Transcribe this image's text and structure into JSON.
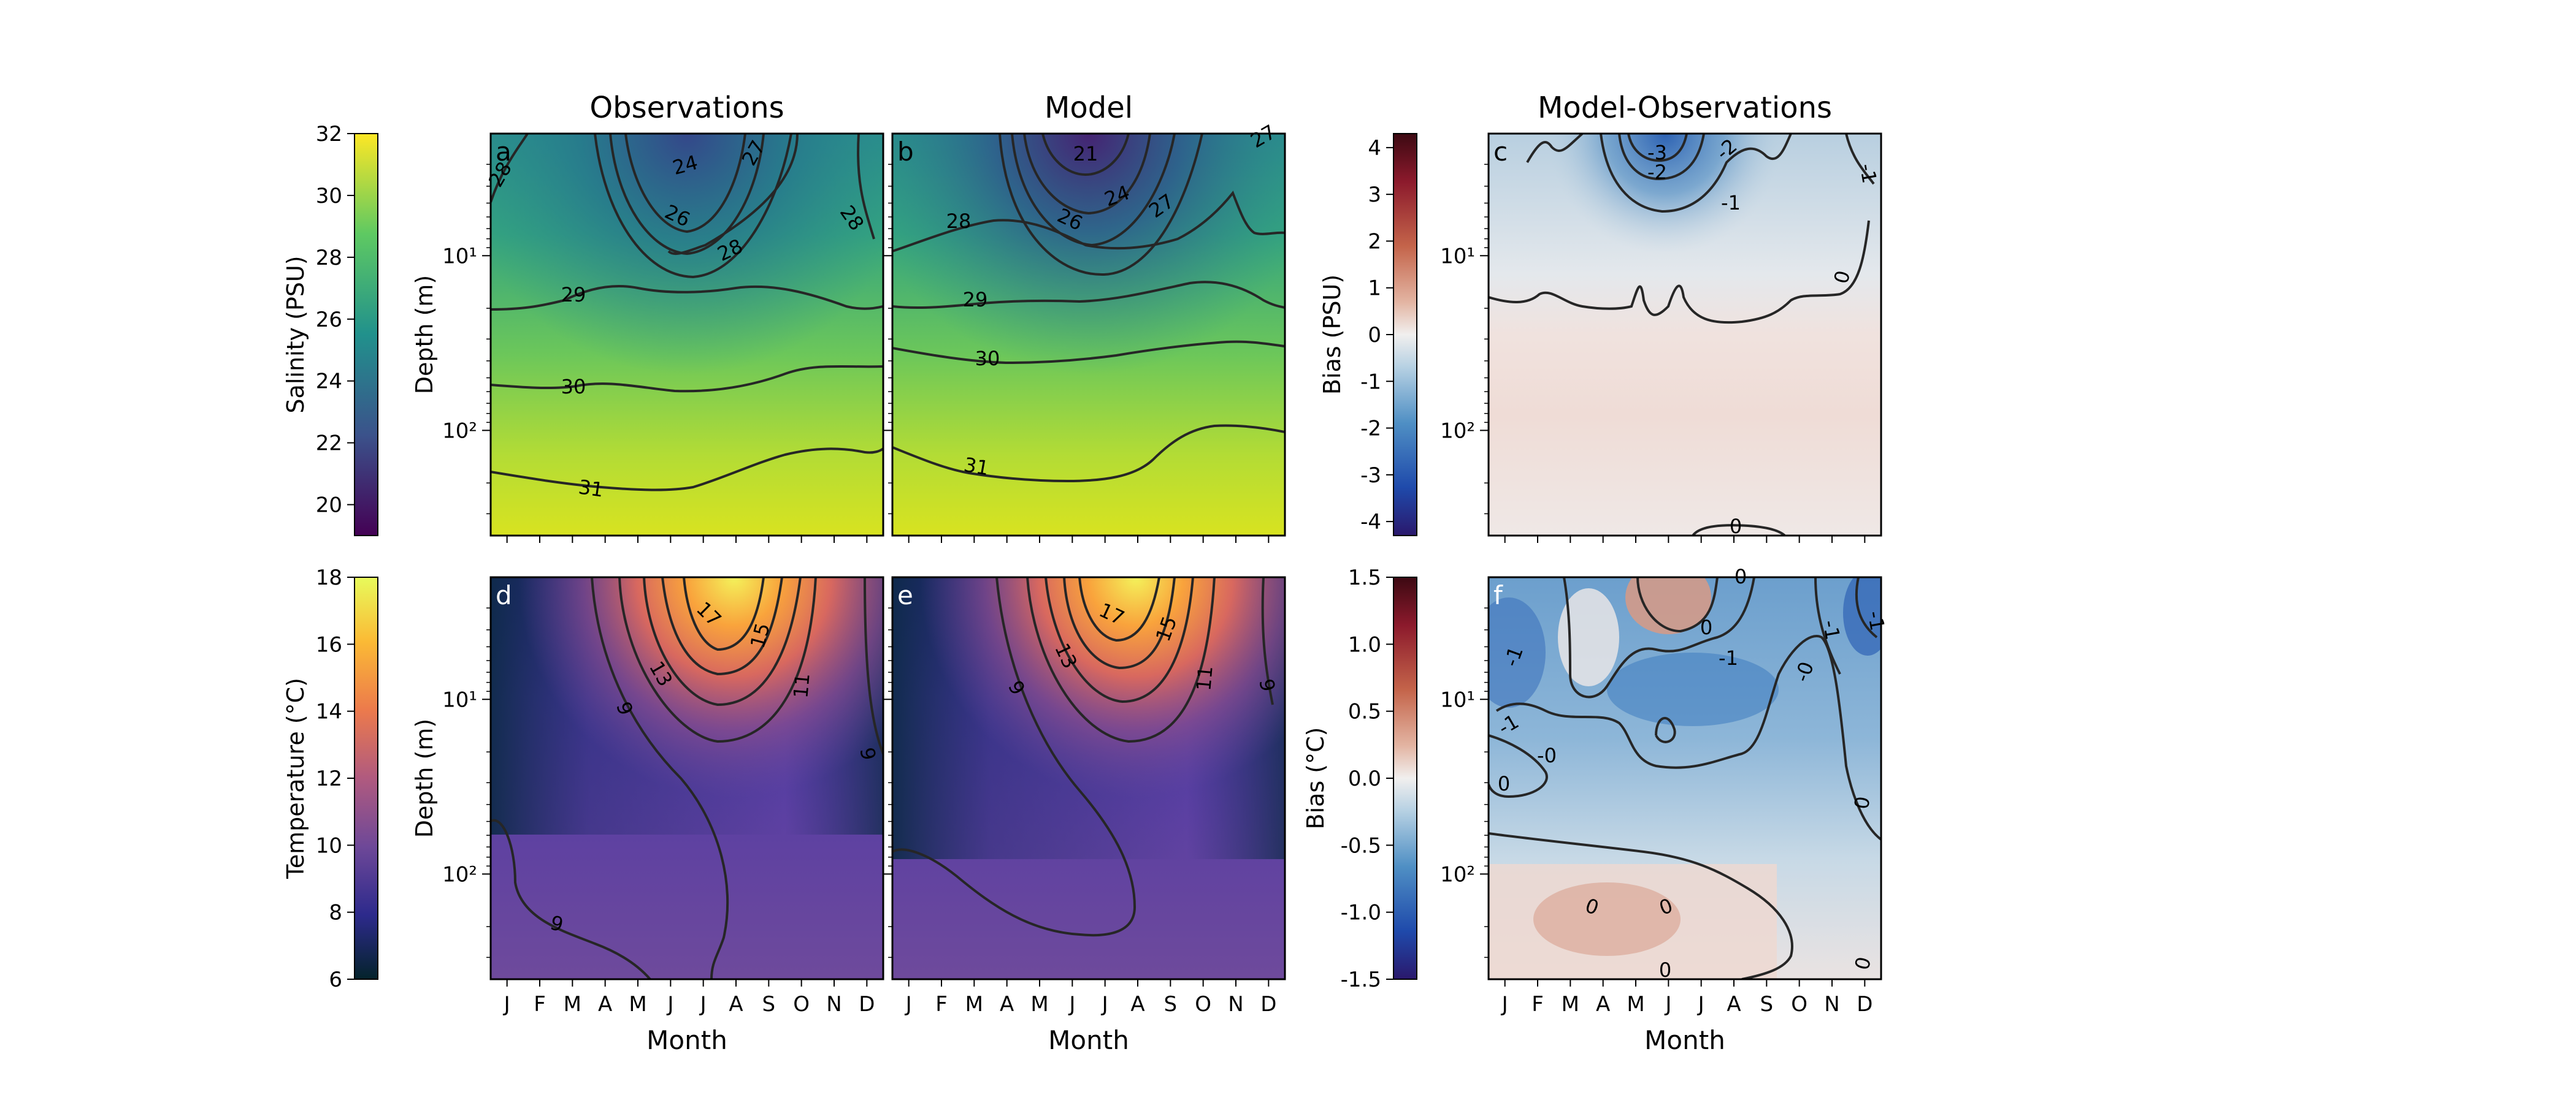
{
  "chart_data": [
    {
      "id": "a",
      "type": "heatmap",
      "panel_letter": "a",
      "title": "Observations",
      "ylabel": "Depth (m)",
      "xlabel": "",
      "x": [
        "J",
        "F",
        "M",
        "A",
        "M",
        "J",
        "J",
        "A",
        "S",
        "O",
        "N",
        "D"
      ],
      "y_scale": "log",
      "y_ticks": [
        "10¹",
        "10²"
      ],
      "variable": "salinity",
      "contours": [
        {
          "level": "24",
          "label": "24"
        },
        {
          "level": "26",
          "label": "26"
        },
        {
          "level": "27",
          "label": "27"
        },
        {
          "level": "28",
          "label": "28"
        },
        {
          "level": "29",
          "label": "29"
        },
        {
          "level": "30",
          "label": "30"
        },
        {
          "level": "31",
          "label": "31"
        }
      ]
    },
    {
      "id": "b",
      "type": "heatmap",
      "panel_letter": "b",
      "title": "Model",
      "ylabel": "",
      "xlabel": "",
      "x": [
        "J",
        "F",
        "M",
        "A",
        "M",
        "J",
        "J",
        "A",
        "S",
        "O",
        "N",
        "D"
      ],
      "y_scale": "log",
      "variable": "salinity",
      "contours": [
        {
          "level": "21",
          "label": "21"
        },
        {
          "level": "24",
          "label": "24"
        },
        {
          "level": "26",
          "label": "26"
        },
        {
          "level": "27",
          "label": "27"
        },
        {
          "level": "28",
          "label": "28"
        },
        {
          "level": "29",
          "label": "29"
        },
        {
          "level": "30",
          "label": "30"
        },
        {
          "level": "31",
          "label": "31"
        }
      ]
    },
    {
      "id": "c",
      "type": "heatmap",
      "panel_letter": "c",
      "title": "Model-Observations",
      "ylabel": "",
      "xlabel": "",
      "x": [
        "J",
        "F",
        "M",
        "A",
        "M",
        "J",
        "J",
        "A",
        "S",
        "O",
        "N",
        "D"
      ],
      "y_scale": "log",
      "y_ticks": [
        "10¹",
        "10²"
      ],
      "variable": "salinity bias",
      "contours": [
        {
          "level": "-3",
          "label": "-3"
        },
        {
          "level": "-2",
          "label": "-2"
        },
        {
          "level": "-1",
          "label": "-1"
        },
        {
          "level": "0",
          "label": "0"
        }
      ]
    },
    {
      "id": "d",
      "type": "heatmap",
      "panel_letter": "d",
      "title": "",
      "ylabel": "Depth (m)",
      "xlabel": "Month",
      "x": [
        "J",
        "F",
        "M",
        "A",
        "M",
        "J",
        "J",
        "A",
        "S",
        "O",
        "N",
        "D"
      ],
      "y_scale": "log",
      "y_ticks": [
        "10¹",
        "10²"
      ],
      "variable": "temperature",
      "contours": [
        {
          "level": "9",
          "label": "9"
        },
        {
          "level": "11",
          "label": "11"
        },
        {
          "level": "13",
          "label": "13"
        },
        {
          "level": "15",
          "label": "15"
        },
        {
          "level": "17",
          "label": "17"
        }
      ]
    },
    {
      "id": "e",
      "type": "heatmap",
      "panel_letter": "e",
      "title": "",
      "ylabel": "",
      "xlabel": "Month",
      "x": [
        "J",
        "F",
        "M",
        "A",
        "M",
        "J",
        "J",
        "A",
        "S",
        "O",
        "N",
        "D"
      ],
      "y_scale": "log",
      "variable": "temperature",
      "contours": [
        {
          "level": "9",
          "label": "9"
        },
        {
          "level": "11",
          "label": "11"
        },
        {
          "level": "13",
          "label": "13"
        },
        {
          "level": "15",
          "label": "15"
        },
        {
          "level": "17",
          "label": "17"
        }
      ]
    },
    {
      "id": "f",
      "type": "heatmap",
      "panel_letter": "f",
      "title": "",
      "ylabel": "",
      "xlabel": "Month",
      "x": [
        "J",
        "F",
        "M",
        "A",
        "M",
        "J",
        "J",
        "A",
        "S",
        "O",
        "N",
        "D"
      ],
      "y_scale": "log",
      "y_ticks": [
        "10¹",
        "10²"
      ],
      "variable": "temperature bias",
      "contours": [
        {
          "level": "-1",
          "label": "-1"
        },
        {
          "level": "-0",
          "label": "-0"
        },
        {
          "level": "0",
          "label": "0"
        }
      ]
    }
  ],
  "colorbars": [
    {
      "id": "cb-salinity",
      "label": "Salinity (PSU)",
      "ticks": [
        "20",
        "22",
        "24",
        "26",
        "28",
        "30",
        "32"
      ],
      "range": [
        19,
        32
      ],
      "colormap": "viridis",
      "colors": [
        "#440154",
        "#3b528b",
        "#21918c",
        "#5ec962",
        "#fde725"
      ]
    },
    {
      "id": "cb-salinity-bias",
      "label": "Bias (PSU)",
      "ticks": [
        "-4",
        "-3",
        "-2",
        "-1",
        "0",
        "1",
        "2",
        "3",
        "4"
      ],
      "range": [
        -4.3,
        4.3
      ],
      "colormap": "balance",
      "colors": [
        "#2a186c",
        "#1f4aab",
        "#4f8fc4",
        "#b7d1e3",
        "#f1efee",
        "#e3b5a3",
        "#c4644a",
        "#8c1a2c",
        "#3c0912"
      ]
    },
    {
      "id": "cb-temperature",
      "label": "Temperature (°C)",
      "ticks": [
        "6",
        "8",
        "10",
        "12",
        "14",
        "16",
        "18"
      ],
      "range": [
        6,
        18
      ],
      "colormap": "thermal",
      "colors": [
        "#04232b",
        "#2d2a8c",
        "#6e4898",
        "#b05a7f",
        "#ec7a4c",
        "#fbba35",
        "#e8fa5b"
      ]
    },
    {
      "id": "cb-temperature-bias",
      "label": "Bias (°C)",
      "ticks": [
        "-1.5",
        "-1.0",
        "-0.5",
        "0.0",
        "0.5",
        "1.0",
        "1.5"
      ],
      "range": [
        -1.5,
        1.5
      ],
      "colormap": "balance",
      "colors": [
        "#2a186c",
        "#1f4aab",
        "#4f8fc4",
        "#b7d1e3",
        "#f1efee",
        "#e3b5a3",
        "#c4644a",
        "#8c1a2c",
        "#3c0912"
      ]
    }
  ],
  "header": {
    "observations": "Observations",
    "model": "Model",
    "difference": "Model-Observations"
  },
  "months": [
    "J",
    "F",
    "M",
    "A",
    "M",
    "J",
    "J",
    "A",
    "S",
    "O",
    "N",
    "D"
  ],
  "month_axis_label": "Month",
  "depth_axis_label": "Depth (m)"
}
